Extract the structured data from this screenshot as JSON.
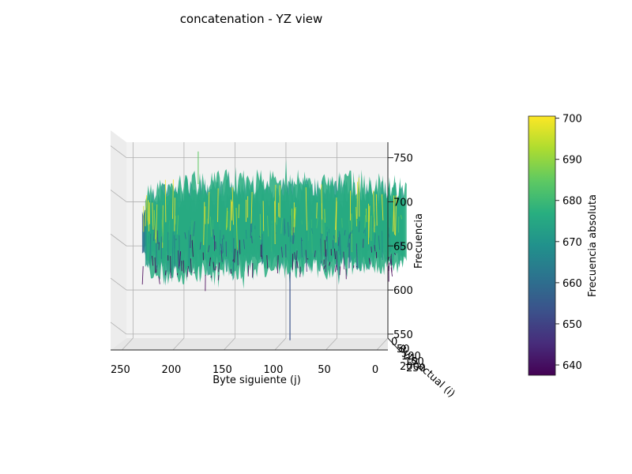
{
  "chart_data": {
    "type": "surface",
    "title": "concatenation - YZ view",
    "view": "YZ",
    "xlabel": "Byte siguiente (j)",
    "ylabel": "Byte actual (i)",
    "zlabel": "Frecuencia",
    "colorbar_label": "Frecuencia absoluta",
    "colormap": "viridis",
    "x_ticks": [
      "250",
      "200",
      "150",
      "100",
      "50",
      "0"
    ],
    "x_tick_values": [
      250,
      200,
      150,
      100,
      50,
      0
    ],
    "xlim": [
      272,
      0
    ],
    "y_ticks": [
      "0",
      "50",
      "100",
      "150",
      "200",
      "250"
    ],
    "z_ticks": [
      "550",
      "600",
      "650",
      "700",
      "750"
    ],
    "z_tick_values": [
      550,
      600,
      650,
      700,
      750
    ],
    "zlim": [
      532,
      781
    ],
    "colorbar_ticks": [
      "640",
      "650",
      "660",
      "670",
      "680",
      "690",
      "700"
    ],
    "colorbar_tick_values": [
      640,
      650,
      660,
      670,
      680,
      690,
      700
    ],
    "colorbar_range": [
      637.5,
      700.5
    ],
    "surface_profile": {
      "x_range": [
        0,
        255
      ],
      "mean": 668,
      "upper_envelope": [
        [
          255,
          712
        ],
        [
          235,
          725
        ],
        [
          200,
          728
        ],
        [
          150,
          728
        ],
        [
          100,
          728
        ],
        [
          50,
          728
        ],
        [
          0,
          722
        ]
      ],
      "lower_envelope": [
        [
          255,
          622
        ],
        [
          235,
          612
        ],
        [
          200,
          615
        ],
        [
          150,
          618
        ],
        [
          100,
          620
        ],
        [
          50,
          620
        ],
        [
          0,
          625
        ]
      ],
      "max_peak": 757,
      "min_trough": 543,
      "min_trough_x": 110
    },
    "grid": true
  }
}
